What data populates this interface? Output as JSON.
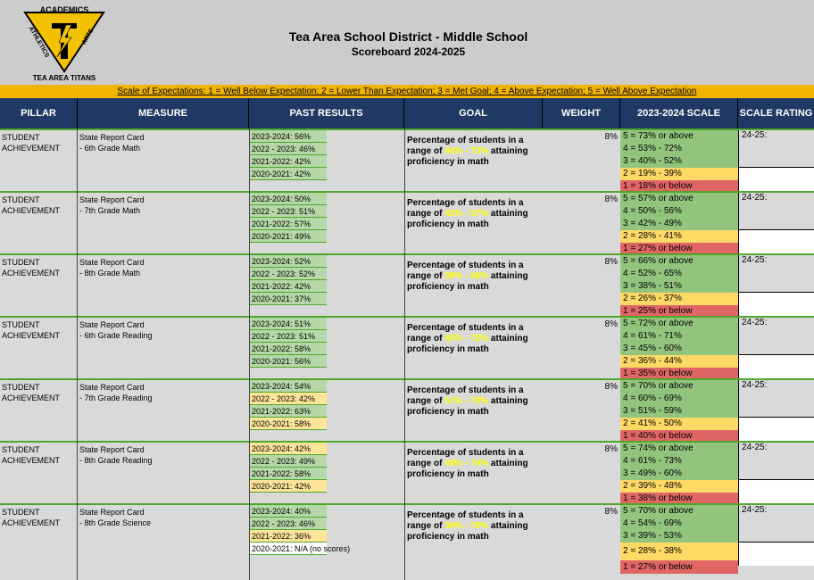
{
  "logo": {
    "text_top": "ACADEMICS",
    "text_left": "ATHLETICS",
    "text_right": "ARTS",
    "text_bottom": "TEA AREA TITANS",
    "colors": {
      "yellow": "#f2c200",
      "black": "#000000"
    }
  },
  "title": {
    "line1": "Tea Area School District - Middle School",
    "line2": "Scoreboard 2024-2025"
  },
  "scale_legend": {
    "label": "Scale of Expectations:",
    "text": " 1 = Well Below Expectation; 2 = Lower Than Expectation; 3 = Met Goal; 4 = Above Expectation; 5 = Well Above Expectation"
  },
  "columns": [
    "PILLAR",
    "MEASURE",
    "PAST RESULTS",
    "GOAL",
    "WEIGHT",
    "2023-2024 SCALE",
    "SCALE RATING"
  ],
  "rows": [
    {
      "pillar1": "STUDENT",
      "pillar2": "ACHIEVEMENT",
      "measure1": "State Report Card",
      "measure2": "- 6th Grade Math",
      "past": [
        {
          "t": "2023-2024: 56%",
          "c": "g"
        },
        {
          "t": "2022 - 2023: 46%",
          "c": "g"
        },
        {
          "t": "2021-2022: 42%",
          "c": "g"
        },
        {
          "t": "2020-2021: 42%",
          "c": "g"
        }
      ],
      "goal_a": "Percentage of students in a",
      "goal_b": "range of ",
      "goal_hl": "40% - 73%",
      "goal_c": " attaining",
      "goal_d": "proficiency in math",
      "weight": "8%",
      "scale": [
        "5 = 73% or above",
        "4 = 53% - 72%",
        "3 = 40% - 52%",
        "2 = 19% - 39%",
        "1 = 18% or below"
      ],
      "rating": "24-25:"
    },
    {
      "pillar1": "STUDENT",
      "pillar2": "ACHIEVEMENT",
      "measure1": "State Report Card",
      "measure2": "- 7th Grade Math",
      "past": [
        {
          "t": "2023-2024: 50%",
          "c": "g"
        },
        {
          "t": "2022 - 2023: 51%",
          "c": "g"
        },
        {
          "t": "2021-2022: 57%",
          "c": "g"
        },
        {
          "t": "2020-2021: 49%",
          "c": "g"
        }
      ],
      "goal_a": "Percentage of students in a",
      "goal_b": "range of ",
      "goal_hl": "42% - 57%",
      "goal_c": " attaining",
      "goal_d": "proficiency in math",
      "weight": "8%",
      "scale": [
        "5 = 57% or above",
        "4 = 50% - 56%",
        "3 = 42% - 49%",
        "2 = 28% - 41%",
        "1 = 27% or below"
      ],
      "rating": "24-25:"
    },
    {
      "pillar1": "STUDENT",
      "pillar2": "ACHIEVEMENT",
      "measure1": "State Report Card",
      "measure2": "- 8th Grade Math",
      "past": [
        {
          "t": "2023-2024: 52%",
          "c": "g"
        },
        {
          "t": "2022 - 2023: 52%",
          "c": "g"
        },
        {
          "t": "2021-2022: 42%",
          "c": "g"
        },
        {
          "t": "2020-2021: 37%",
          "c": "g"
        }
      ],
      "goal_a": "Percentage of students in a",
      "goal_b": "range of ",
      "goal_hl": "38% - 66%",
      "goal_c": " attaining",
      "goal_d": "proficiency in math",
      "weight": "8%",
      "scale": [
        "5 = 66% or above",
        "4 = 52% - 65%",
        "3 = 38% - 51%",
        "2 = 26% - 37%",
        "1 = 25% or below"
      ],
      "rating": "24-25:"
    },
    {
      "pillar1": "STUDENT",
      "pillar2": "ACHIEVEMENT",
      "measure1": "State Report Card",
      "measure2": "- 6th Grade Reading",
      "past": [
        {
          "t": "2023-2024: 51%",
          "c": "g"
        },
        {
          "t": "2022 - 2023: 51%",
          "c": "g"
        },
        {
          "t": "2021-2022: 58%",
          "c": "g"
        },
        {
          "t": "2020-2021: 56%",
          "c": "g"
        }
      ],
      "goal_a": "Percentage of students in a",
      "goal_b": "range of ",
      "goal_hl": "45% - 72%",
      "goal_c": " attaining",
      "goal_d": "proficiency in math",
      "weight": "8%",
      "scale": [
        "5 = 72% or above",
        "4 = 61% - 71%",
        "3 = 45% - 60%",
        "2 = 36% - 44%",
        "1 = 35% or below"
      ],
      "rating": "24-25:"
    },
    {
      "pillar1": "STUDENT",
      "pillar2": "ACHIEVEMENT",
      "measure1": "State Report Card",
      "measure2": "- 7th Grade Reading",
      "past": [
        {
          "t": "2023-2024: 54%",
          "c": "g"
        },
        {
          "t": "2022 - 2023: 42%",
          "c": "y"
        },
        {
          "t": "2021-2022: 63%",
          "c": "g"
        },
        {
          "t": "2020-2021: 58%",
          "c": "y"
        }
      ],
      "goal_a": "Percentage of students in a",
      "goal_b": "range of ",
      "goal_hl": "51% - 70%",
      "goal_c": " attaining",
      "goal_d": "proficiency in math",
      "weight": "8%",
      "scale": [
        "5 = 70% or above",
        "4 = 60% - 69%",
        "3 = 51% - 59%",
        "2 = 41% - 50%",
        "1 = 40% or below"
      ],
      "rating": "24-25:"
    },
    {
      "pillar1": "STUDENT",
      "pillar2": "ACHIEVEMENT",
      "measure1": "State Report Card",
      "measure2": "- 8th Grade Reading",
      "past": [
        {
          "t": "2023-2024: 42%",
          "c": "y"
        },
        {
          "t": "2022 - 2023: 49%",
          "c": "g"
        },
        {
          "t": "2021-2022: 58%",
          "c": "g"
        },
        {
          "t": "2020-2021: 42%",
          "c": "y"
        }
      ],
      "goal_a": "Percentage of students in a",
      "goal_b": "range of ",
      "goal_hl": "49% - 74%",
      "goal_c": " attaining",
      "goal_d": "proficiency in math",
      "weight": "8%",
      "scale": [
        "5 = 74% or above",
        "4 = 61% - 73%",
        "3 = 49% - 60%",
        "2 = 39% - 48%",
        "1 = 38% or below"
      ],
      "rating": "24-25:"
    },
    {
      "pillar1": "STUDENT",
      "pillar2": "ACHIEVEMENT",
      "measure1": "State Report Card",
      "measure2": "- 8th Grade Science",
      "past": [
        {
          "t": "2023-2024: 40%",
          "c": "g"
        },
        {
          "t": "2022 - 2023: 46%",
          "c": "g"
        },
        {
          "t": "2021-2022: 36%",
          "c": "y"
        },
        {
          "t": "2020-2021: N/A (no scores)",
          "c": "w"
        }
      ],
      "goal_a": "Percentage of students in a",
      "goal_b": "range of ",
      "goal_hl": "39% - 70%",
      "goal_c": " attaining",
      "goal_d": "proficiency in math",
      "weight": "8%",
      "scale": [
        "5 = 70% or above",
        "4 = 54% - 69%",
        "3 = 39% - 53%",
        "2 = 28% - 38%",
        "1 = 27% or below"
      ],
      "rating": "24-25:"
    }
  ]
}
